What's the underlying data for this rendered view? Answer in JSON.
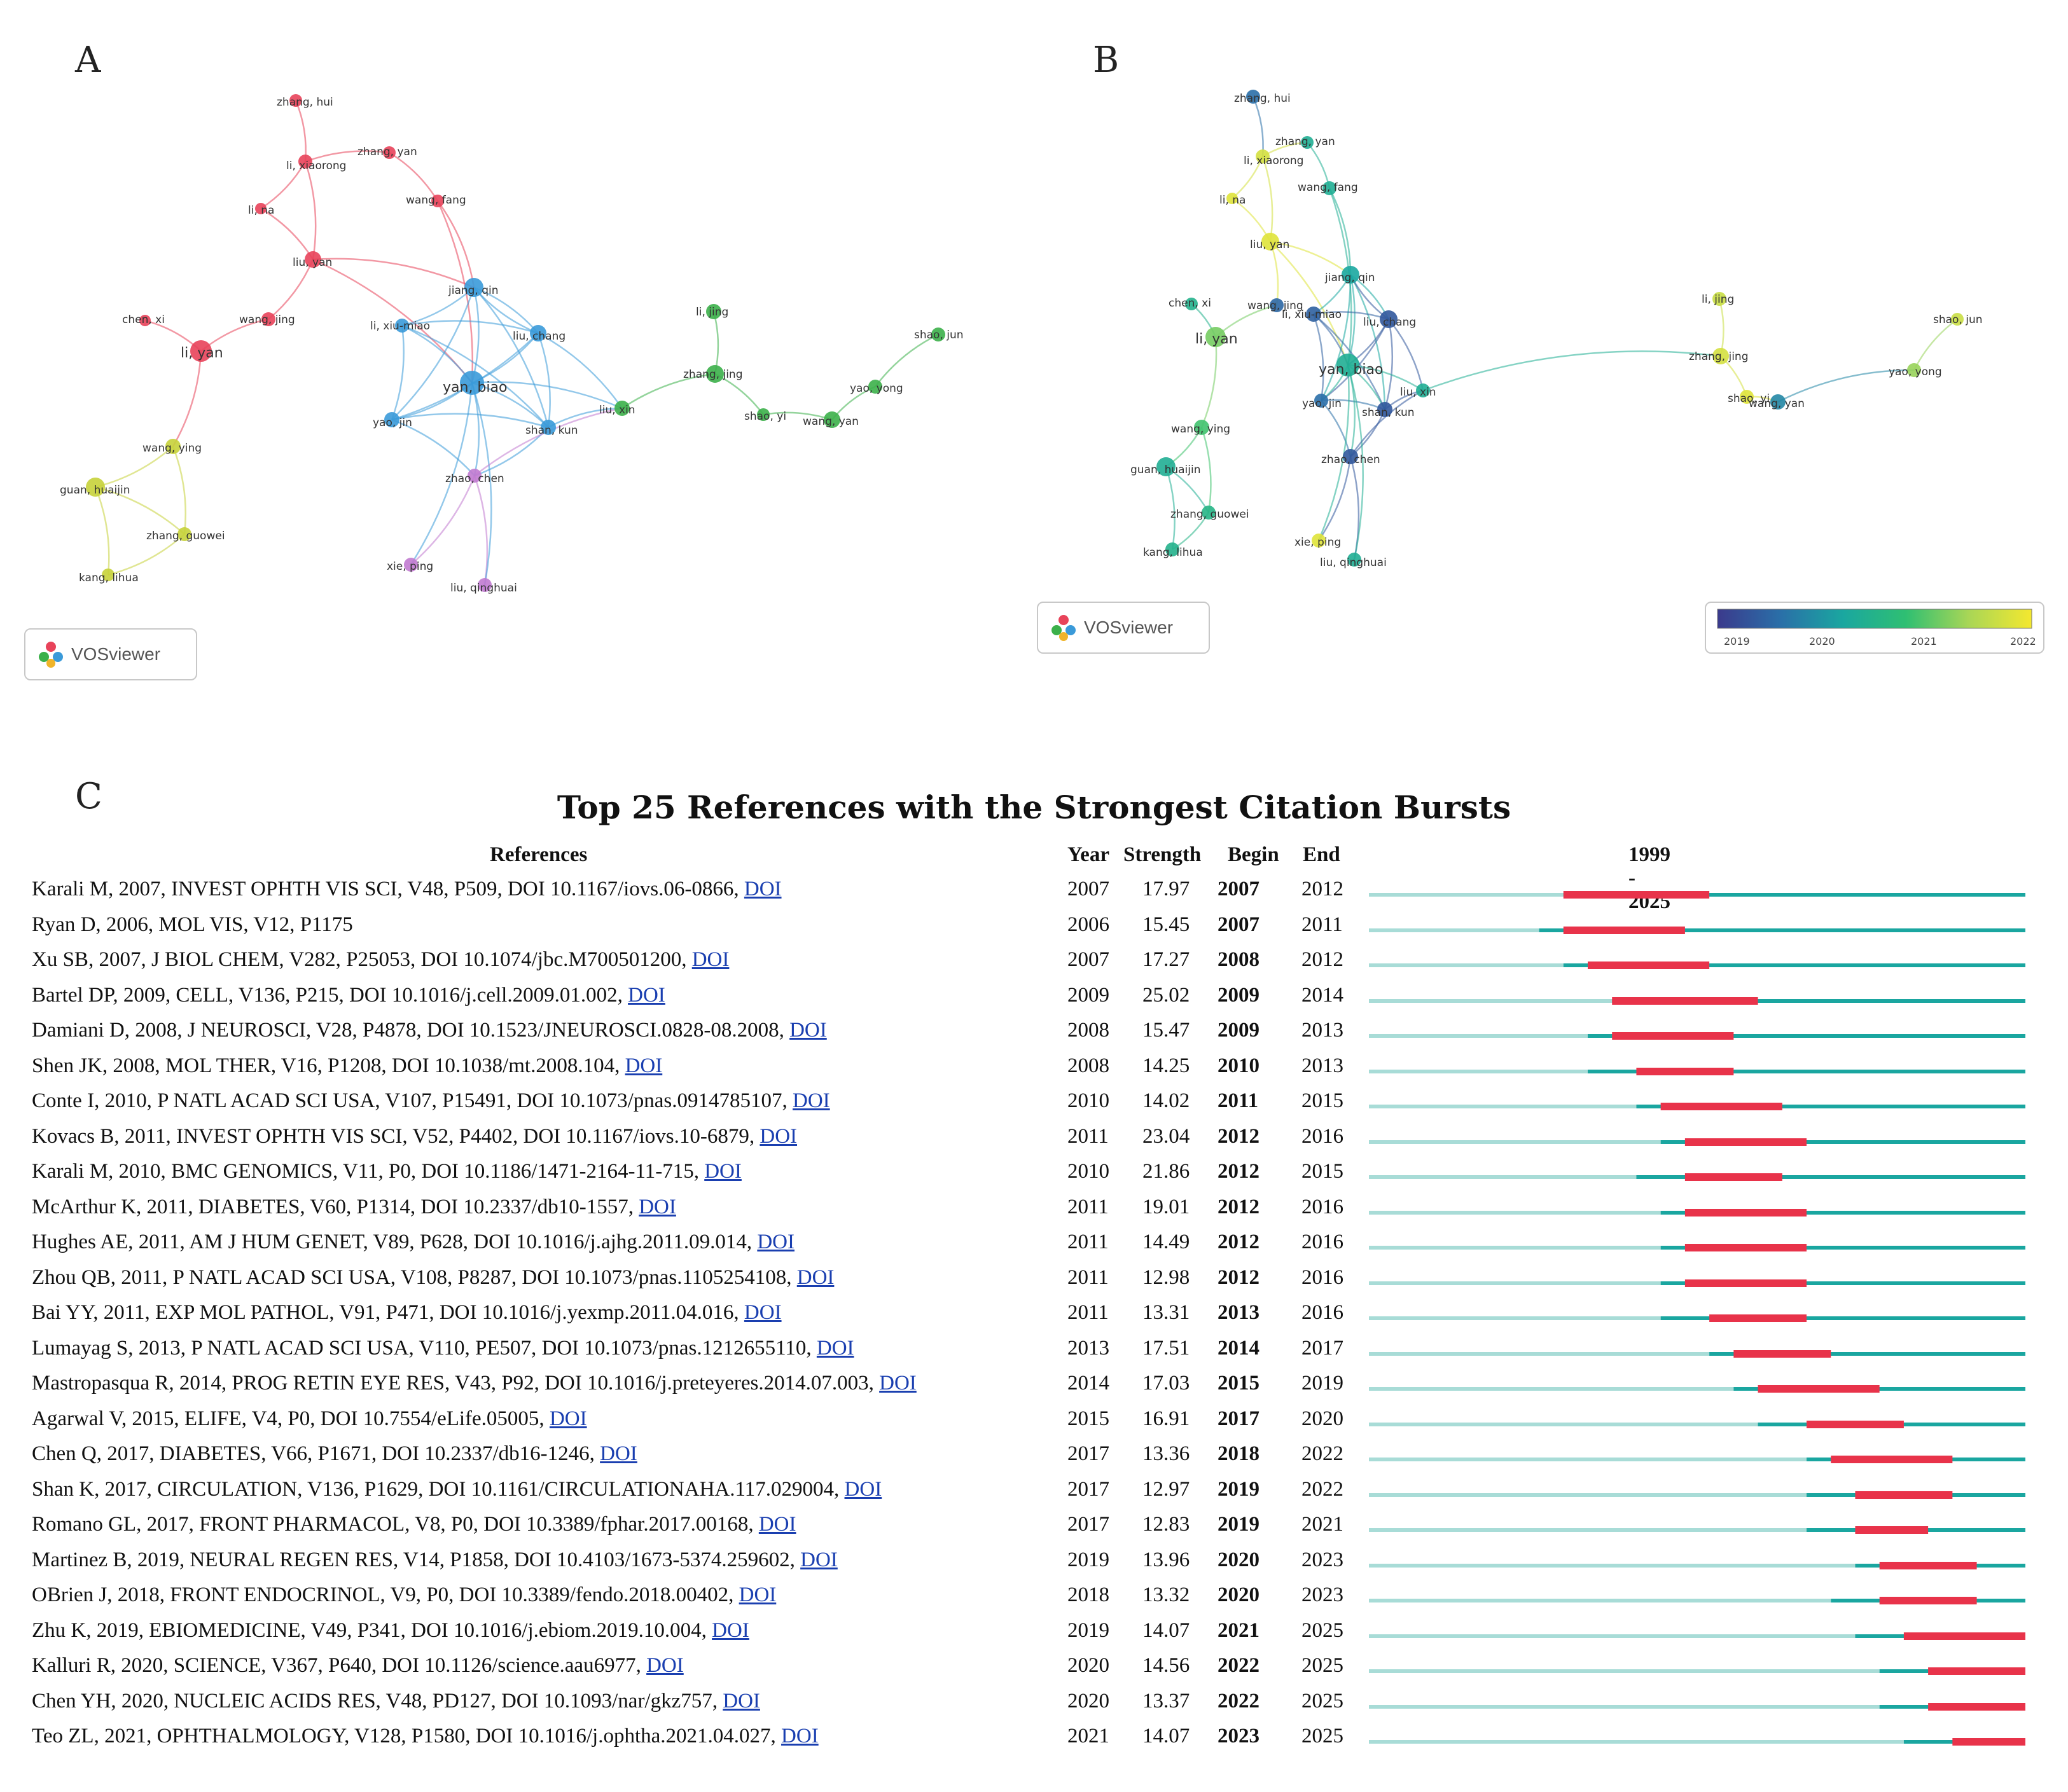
{
  "panels": {
    "a": "A",
    "b": "B",
    "c": "C"
  },
  "vosviewer_label": "VOSviewer",
  "colorbar": {
    "ticks": [
      "2019",
      "2020",
      "2021",
      "2022"
    ],
    "colors": [
      "#3b3a8c",
      "#2a6fa8",
      "#1aa7a0",
      "#2fbf72",
      "#a9d656",
      "#f4e82f"
    ]
  },
  "network_a": {
    "nodes": [
      {
        "id": "zhang, hui",
        "cluster": "red"
      },
      {
        "id": "li, xiaorong",
        "cluster": "red"
      },
      {
        "id": "zhang, yan",
        "cluster": "red"
      },
      {
        "id": "wang, fang",
        "cluster": "red"
      },
      {
        "id": "li, na",
        "cluster": "red"
      },
      {
        "id": "liu, yan",
        "cluster": "red"
      },
      {
        "id": "chen, xi",
        "cluster": "red"
      },
      {
        "id": "wang, jing",
        "cluster": "red"
      },
      {
        "id": "li, yan",
        "cluster": "red"
      },
      {
        "id": "jiang, qin",
        "cluster": "blue"
      },
      {
        "id": "li, xiu-miao",
        "cluster": "blue"
      },
      {
        "id": "liu, chang",
        "cluster": "blue"
      },
      {
        "id": "yan, biao",
        "cluster": "blue"
      },
      {
        "id": "yao, jin",
        "cluster": "blue"
      },
      {
        "id": "shan, kun",
        "cluster": "blue"
      },
      {
        "id": "zhao, chen",
        "cluster": "purple"
      },
      {
        "id": "xie, ping",
        "cluster": "purple"
      },
      {
        "id": "liu, qinghuai",
        "cluster": "purple"
      },
      {
        "id": "liu, xin",
        "cluster": "green"
      },
      {
        "id": "li, jing",
        "cluster": "green"
      },
      {
        "id": "zhang, jing",
        "cluster": "green"
      },
      {
        "id": "shao, jun",
        "cluster": "green"
      },
      {
        "id": "yao, yong",
        "cluster": "green"
      },
      {
        "id": "shao, yi",
        "cluster": "green"
      },
      {
        "id": "wang, yan",
        "cluster": "green"
      },
      {
        "id": "wang, ying",
        "cluster": "yellow"
      },
      {
        "id": "guan, huaijin",
        "cluster": "yellow"
      },
      {
        "id": "zhang, guowei",
        "cluster": "yellow"
      },
      {
        "id": "kang, lihua",
        "cluster": "yellow"
      }
    ],
    "cluster_colors": {
      "red": "#e8435a",
      "blue": "#3a9ad9",
      "purple": "#c17ad0",
      "green": "#3cb04a",
      "yellow": "#c7d23a"
    }
  },
  "network_b": {
    "nodes": [
      {
        "id": "zhang, hui",
        "year": 2019.4
      },
      {
        "id": "zhang, yan",
        "year": 2020.3
      },
      {
        "id": "li, xiaorong",
        "year": 2021.9
      },
      {
        "id": "li, na",
        "year": 2022
      },
      {
        "id": "wang, fang",
        "year": 2020.3
      },
      {
        "id": "liu, yan",
        "year": 2022
      },
      {
        "id": "jiang, qin",
        "year": 2020.1
      },
      {
        "id": "chen, xi",
        "year": 2020.4
      },
      {
        "id": "wang, jing",
        "year": 2019.3
      },
      {
        "id": "li, xiu-miao",
        "year": 2019.2
      },
      {
        "id": "liu, chang",
        "year": 2019.1
      },
      {
        "id": "li, jing",
        "year": 2021.8
      },
      {
        "id": "shao, jun",
        "year": 2021.8
      },
      {
        "id": "li, yan",
        "year": 2021.2
      },
      {
        "id": "yan, biao",
        "year": 2020.3
      },
      {
        "id": "zhang, jing",
        "year": 2021.9
      },
      {
        "id": "yao, yong",
        "year": 2021.4
      },
      {
        "id": "liu, xin",
        "year": 2020.3
      },
      {
        "id": "yao, jin",
        "year": 2019.4
      },
      {
        "id": "shan, kun",
        "year": 2019.1
      },
      {
        "id": "shao, yi",
        "year": 2022
      },
      {
        "id": "wang, yan",
        "year": 2019.7
      },
      {
        "id": "wang, ying",
        "year": 2020.9
      },
      {
        "id": "guan, huaijin",
        "year": 2020.3
      },
      {
        "id": "zhao, chen",
        "year": 2019.1
      },
      {
        "id": "zhang, guowei",
        "year": 2020.5
      },
      {
        "id": "kang, lihua",
        "year": 2020.4
      },
      {
        "id": "xie, ping",
        "year": 2022
      },
      {
        "id": "liu, qinghuai",
        "year": 2020.3
      }
    ]
  },
  "chart_data": {
    "type": "table",
    "title": "Top 25 References with the Strongest Citation Bursts",
    "columns": [
      "References",
      "Year",
      "Strength",
      "Begin",
      "End",
      "1999 - 2025"
    ],
    "timeline_start": 1999,
    "timeline_end": 2025,
    "colors": {
      "before": "#a8dcd7",
      "active": "#1aa6a0",
      "burst": "#e8334a"
    },
    "rows": [
      {
        "ref": "Karali M, 2007, INVEST OPHTH VIS SCI, V48, P509, DOI 10.1167/iovs.06-0866,",
        "doi": "DOI",
        "year": 2007,
        "strength": "17.97",
        "begin": 2007,
        "end": 2012
      },
      {
        "ref": "Ryan D, 2006, MOL VIS, V12, P1175",
        "doi": "",
        "year": 2006,
        "strength": "15.45",
        "begin": 2007,
        "end": 2011
      },
      {
        "ref": "Xu SB, 2007, J BIOL CHEM, V282, P25053, DOI 10.1074/jbc.M700501200,",
        "doi": "DOI",
        "year": 2007,
        "strength": "17.27",
        "begin": 2008,
        "end": 2012
      },
      {
        "ref": "Bartel DP, 2009, CELL, V136, P215, DOI 10.1016/j.cell.2009.01.002,",
        "doi": "DOI",
        "year": 2009,
        "strength": "25.02",
        "begin": 2009,
        "end": 2014
      },
      {
        "ref": "Damiani D, 2008, J NEUROSCI, V28, P4878, DOI 10.1523/JNEUROSCI.0828-08.2008,",
        "doi": "DOI",
        "year": 2008,
        "strength": "15.47",
        "begin": 2009,
        "end": 2013
      },
      {
        "ref": "Shen JK, 2008, MOL THER, V16, P1208, DOI 10.1038/mt.2008.104,",
        "doi": "DOI",
        "year": 2008,
        "strength": "14.25",
        "begin": 2010,
        "end": 2013
      },
      {
        "ref": "Conte I, 2010, P NATL ACAD SCI USA, V107, P15491, DOI 10.1073/pnas.0914785107,",
        "doi": "DOI",
        "year": 2010,
        "strength": "14.02",
        "begin": 2011,
        "end": 2015
      },
      {
        "ref": "Kovacs B, 2011, INVEST OPHTH VIS SCI, V52, P4402, DOI 10.1167/iovs.10-6879,",
        "doi": "DOI",
        "year": 2011,
        "strength": "23.04",
        "begin": 2012,
        "end": 2016
      },
      {
        "ref": "Karali M, 2010, BMC GENOMICS, V11, P0, DOI 10.1186/1471-2164-11-715,",
        "doi": "DOI",
        "year": 2010,
        "strength": "21.86",
        "begin": 2012,
        "end": 2015
      },
      {
        "ref": "McArthur K, 2011, DIABETES, V60, P1314, DOI 10.2337/db10-1557,",
        "doi": "DOI",
        "year": 2011,
        "strength": "19.01",
        "begin": 2012,
        "end": 2016
      },
      {
        "ref": "Hughes AE, 2011, AM J HUM GENET, V89, P628, DOI 10.1016/j.ajhg.2011.09.014,",
        "doi": "DOI",
        "year": 2011,
        "strength": "14.49",
        "begin": 2012,
        "end": 2016
      },
      {
        "ref": "Zhou QB, 2011, P NATL ACAD SCI USA, V108, P8287, DOI 10.1073/pnas.1105254108,",
        "doi": "DOI",
        "year": 2011,
        "strength": "12.98",
        "begin": 2012,
        "end": 2016
      },
      {
        "ref": "Bai YY, 2011, EXP MOL PATHOL, V91, P471, DOI 10.1016/j.yexmp.2011.04.016,",
        "doi": "DOI",
        "year": 2011,
        "strength": "13.31",
        "begin": 2013,
        "end": 2016
      },
      {
        "ref": "Lumayag S, 2013, P NATL ACAD SCI USA, V110, PE507, DOI 10.1073/pnas.1212655110,",
        "doi": "DOI",
        "year": 2013,
        "strength": "17.51",
        "begin": 2014,
        "end": 2017
      },
      {
        "ref": "Mastropasqua R, 2014, PROG RETIN EYE RES, V43, P92, DOI 10.1016/j.preteyeres.2014.07.003,",
        "doi": "DOI",
        "year": 2014,
        "strength": "17.03",
        "begin": 2015,
        "end": 2019
      },
      {
        "ref": "Agarwal V, 2015, ELIFE, V4, P0, DOI 10.7554/eLife.05005,",
        "doi": "DOI",
        "year": 2015,
        "strength": "16.91",
        "begin": 2017,
        "end": 2020
      },
      {
        "ref": "Chen Q, 2017, DIABETES, V66, P1671, DOI 10.2337/db16-1246,",
        "doi": "DOI",
        "year": 2017,
        "strength": "13.36",
        "begin": 2018,
        "end": 2022
      },
      {
        "ref": "Shan K, 2017, CIRCULATION, V136, P1629, DOI 10.1161/CIRCULATIONAHA.117.029004,",
        "doi": "DOI",
        "year": 2017,
        "strength": "12.97",
        "begin": 2019,
        "end": 2022
      },
      {
        "ref": "Romano GL, 2017, FRONT PHARMACOL, V8, P0, DOI 10.3389/fphar.2017.00168,",
        "doi": "DOI",
        "year": 2017,
        "strength": "12.83",
        "begin": 2019,
        "end": 2021
      },
      {
        "ref": "Martinez B, 2019, NEURAL REGEN RES, V14, P1858, DOI 10.4103/1673-5374.259602,",
        "doi": "DOI",
        "year": 2019,
        "strength": "13.96",
        "begin": 2020,
        "end": 2023
      },
      {
        "ref": "OBrien J, 2018, FRONT ENDOCRINOL, V9, P0, DOI 10.3389/fendo.2018.00402,",
        "doi": "DOI",
        "year": 2018,
        "strength": "13.32",
        "begin": 2020,
        "end": 2023
      },
      {
        "ref": "Zhu K, 2019, EBIOMEDICINE, V49, P341, DOI 10.1016/j.ebiom.2019.10.004,",
        "doi": "DOI",
        "year": 2019,
        "strength": "14.07",
        "begin": 2021,
        "end": 2025
      },
      {
        "ref": "Kalluri R, 2020, SCIENCE, V367, P640, DOI 10.1126/science.aau6977,",
        "doi": "DOI",
        "year": 2020,
        "strength": "14.56",
        "begin": 2022,
        "end": 2025
      },
      {
        "ref": "Chen YH, 2020, NUCLEIC ACIDS RES, V48, PD127, DOI 10.1093/nar/gkz757,",
        "doi": "DOI",
        "year": 2020,
        "strength": "13.37",
        "begin": 2022,
        "end": 2025
      },
      {
        "ref": "Teo ZL, 2021, OPHTHALMOLOGY, V128, P1580, DOI 10.1016/j.ophtha.2021.04.027,",
        "doi": "DOI",
        "year": 2021,
        "strength": "14.07",
        "begin": 2023,
        "end": 2025
      }
    ]
  }
}
